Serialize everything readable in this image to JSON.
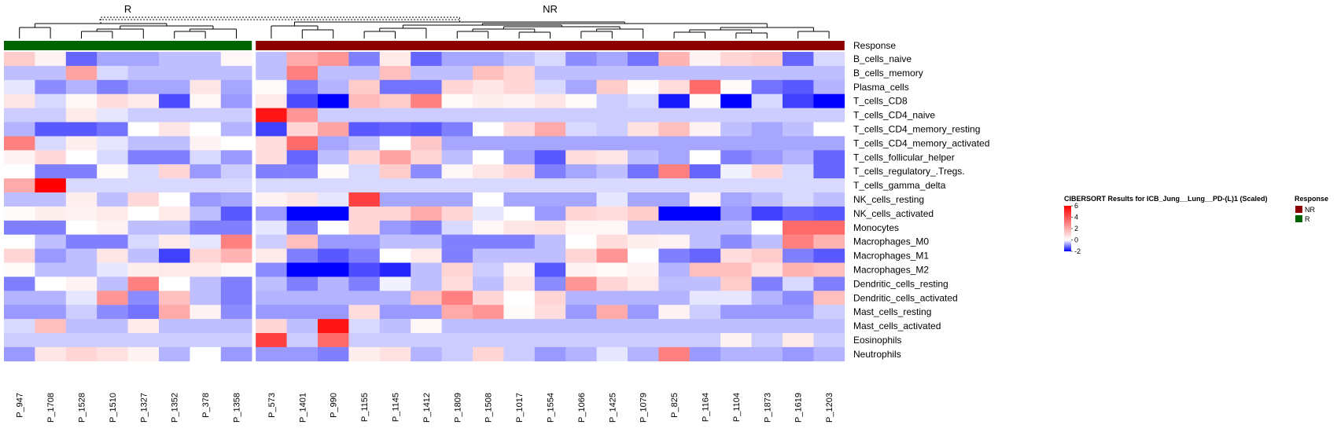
{
  "chart_data": {
    "type": "heatmap",
    "title": "",
    "annotation_row_label": "Response",
    "groups": [
      {
        "label": "R",
        "color": "#006400",
        "columns": [
          "P_947",
          "P_1708",
          "P_1528",
          "P_1510",
          "P_1327",
          "P_1352",
          "P_378",
          "P_1358"
        ]
      },
      {
        "label": "NR",
        "color": "#8B0000",
        "columns": [
          "P_573",
          "P_1401",
          "P_990",
          "P_1155",
          "P_1145",
          "P_1412",
          "P_1809",
          "P_1508",
          "P_1017",
          "P_1554",
          "P_1066",
          "P_1425",
          "P_1079",
          "P_825",
          "P_1164",
          "P_1104",
          "P_1873",
          "P_1619",
          "P_1203"
        ]
      }
    ],
    "rows": [
      "B_cells_naive",
      "B_cells_memory",
      "Plasma_cells",
      "T_cells_CD8",
      "T_cells_CD4_naive",
      "T_cells_CD4_memory_resting",
      "T_cells_CD4_memory_activated",
      "T_cells_follicular_helper",
      "T_cells_regulatory_.Tregs.",
      "T_cells_gamma_delta",
      "NK_cells_resting",
      "NK_cells_activated",
      "Monocytes",
      "Macrophages_M0",
      "Macrophages_M1",
      "Macrophages_M2",
      "Dendritic_cells_resting",
      "Dendritic_cells_activated",
      "Mast_cells_resting",
      "Mast_cells_activated",
      "Eosinophils",
      "Neutrophils"
    ],
    "values": [
      [
        1.2,
        0.3,
        -1.2,
        -0.7,
        -0.7,
        -0.5,
        -0.5,
        0.2,
        -0.5,
        2.0,
        2.5,
        -1.0,
        0.5,
        -1.2,
        -0.7,
        -0.7,
        -0.5,
        -0.3,
        -0.9,
        -0.7,
        -1.1,
        1.8,
        0.3,
        1.0,
        1.2,
        -1.2,
        -0.3
      ],
      [
        -0.5,
        -0.5,
        2.2,
        -0.3,
        -0.5,
        -0.5,
        -0.5,
        -0.5,
        -0.5,
        3.0,
        -0.5,
        -0.5,
        1.5,
        -0.5,
        -0.5,
        1.5,
        1.0,
        -0.5,
        -0.5,
        -0.5,
        -0.5,
        -0.5,
        -0.5,
        -0.5,
        -0.5,
        -0.5,
        -0.5
      ],
      [
        -0.2,
        -0.9,
        -0.6,
        -1.0,
        -0.7,
        -0.7,
        0.6,
        -0.7,
        0.1,
        -1.0,
        -0.6,
        1.2,
        -1.1,
        -1.1,
        1.0,
        0.6,
        1.0,
        -0.3,
        -0.7,
        1.2,
        0.1,
        0.8,
        3.5,
        0.1,
        -1.1,
        -1.3,
        -0.6
      ],
      [
        0.6,
        -0.3,
        0.2,
        0.8,
        0.5,
        -1.4,
        0.2,
        -0.8,
        0.5,
        -1.4,
        -2.0,
        1.6,
        1.2,
        3.0,
        0.1,
        0.4,
        0.3,
        0.6,
        0.1,
        -0.4,
        -0.3,
        -1.8,
        0.1,
        -2.0,
        -0.3,
        -1.5,
        -2.0
      ],
      [
        -0.4,
        -0.4,
        0.5,
        -0.2,
        -0.4,
        -0.4,
        -0.4,
        -0.4,
        5.5,
        2.5,
        -0.4,
        -0.4,
        -0.4,
        -0.4,
        -0.4,
        -0.4,
        -0.4,
        -0.4,
        -0.4,
        -0.4,
        -0.4,
        -0.4,
        -0.4,
        -0.4,
        -0.4,
        -0.4,
        -0.4
      ],
      [
        -0.6,
        -1.3,
        -1.3,
        -1.1,
        0.0,
        0.6,
        0.0,
        -0.6,
        -1.5,
        1.0,
        2.2,
        -1.3,
        -1.2,
        -1.3,
        -1.0,
        0.0,
        0.9,
        2.0,
        -0.3,
        -0.4,
        0.7,
        1.5,
        0.3,
        -0.5,
        -0.7,
        -0.5,
        0.0
      ],
      [
        3.0,
        -0.3,
        0.4,
        -0.2,
        -0.5,
        -0.5,
        0.3,
        0.0,
        0.8,
        3.5,
        -0.7,
        -0.5,
        0.0,
        1.3,
        -0.7,
        -0.7,
        -0.7,
        -0.7,
        -0.7,
        -0.7,
        -0.7,
        -0.7,
        -0.7,
        -0.7,
        -0.7,
        -0.7,
        -0.7
      ],
      [
        0.3,
        0.9,
        0.0,
        -0.3,
        -1.0,
        -1.0,
        -0.3,
        -0.8,
        0.8,
        -1.2,
        -0.5,
        1.0,
        2.2,
        1.0,
        -0.5,
        0.0,
        -0.8,
        -1.3,
        0.8,
        0.6,
        -0.5,
        -0.7,
        0.0,
        -1.0,
        -0.8,
        -0.6,
        -1.2
      ],
      [
        0.0,
        -1.0,
        -1.0,
        0.1,
        -0.3,
        1.0,
        -0.8,
        -0.4,
        -1.0,
        -1.0,
        0.1,
        -0.3,
        1.2,
        -0.9,
        0.2,
        0.6,
        1.0,
        -1.0,
        -0.7,
        -0.5,
        -1.1,
        3.0,
        -1.2,
        -0.1,
        1.0,
        -0.3,
        -1.2
      ],
      [
        2.0,
        6.0,
        -0.3,
        -0.3,
        -0.3,
        -0.3,
        -0.3,
        -0.3,
        -0.3,
        -0.3,
        -0.3,
        -0.3,
        -0.3,
        -0.3,
        -0.3,
        -0.3,
        -0.3,
        -0.3,
        -0.3,
        -0.3,
        -0.3,
        -0.3,
        -0.3,
        -0.3,
        -0.3,
        -0.3,
        -0.3
      ],
      [
        -0.5,
        -0.5,
        0.4,
        -0.5,
        0.9,
        0.0,
        -0.8,
        -0.7,
        0.3,
        0.6,
        -0.2,
        4.5,
        -0.7,
        -0.7,
        -0.7,
        0.0,
        -0.7,
        -0.7,
        -0.7,
        -0.2,
        -0.7,
        -0.7,
        0.3,
        -0.7,
        -0.5,
        -0.3,
        -0.5
      ],
      [
        0.1,
        0.4,
        0.3,
        0.5,
        0.0,
        0.5,
        -0.5,
        -1.3,
        -0.8,
        -2.0,
        -2.0,
        1.0,
        1.0,
        2.0,
        1.0,
        -0.2,
        0.0,
        -0.8,
        1.0,
        0.8,
        1.2,
        -2.0,
        -2.0,
        -0.8,
        -1.5,
        -1.2,
        -1.3
      ],
      [
        -1.0,
        -1.0,
        0.0,
        0.3,
        -0.5,
        -0.5,
        -1.0,
        -1.0,
        -0.2,
        -1.0,
        0.0,
        1.0,
        -0.8,
        -1.0,
        -0.3,
        0.2,
        0.6,
        0.7,
        0.2,
        0.2,
        -0.5,
        -0.5,
        -0.5,
        -0.5,
        0.0,
        3.5,
        3.5
      ],
      [
        0.0,
        -0.5,
        -1.0,
        -1.0,
        -0.3,
        0.5,
        -0.2,
        3.0,
        -0.4,
        1.5,
        -0.8,
        -0.8,
        -0.5,
        -0.5,
        -1.0,
        -1.0,
        -1.0,
        -0.5,
        0.0,
        0.8,
        0.4,
        0.3,
        -0.5,
        -0.9,
        -0.5,
        3.0,
        1.8
      ],
      [
        1.0,
        -0.8,
        -0.5,
        0.6,
        -0.5,
        -1.5,
        1.0,
        1.8,
        0.5,
        -1.0,
        -1.3,
        -1.0,
        0.0,
        0.5,
        -1.0,
        -0.5,
        -0.5,
        -0.5,
        1.0,
        2.5,
        0.0,
        -1.0,
        -1.2,
        0.8,
        1.2,
        -1.0,
        -1.3
      ],
      [
        0.1,
        -0.5,
        -0.5,
        -0.2,
        0.4,
        0.5,
        0.5,
        0.2,
        -0.9,
        -3.0,
        -4.5,
        -1.4,
        -1.7,
        -0.5,
        1.0,
        -0.4,
        0.3,
        -1.3,
        0.3,
        0.1,
        0.3,
        -0.6,
        1.5,
        1.5,
        0.7,
        1.8,
        1.5
      ],
      [
        -1.0,
        0.0,
        0.3,
        -0.5,
        3.0,
        0.0,
        -0.5,
        -1.0,
        -0.5,
        -1.0,
        -0.6,
        -1.0,
        -0.1,
        -0.5,
        0.8,
        -0.5,
        0.6,
        -0.9,
        2.5,
        1.0,
        0.5,
        -0.5,
        -0.5,
        1.2,
        -1.0,
        -0.3,
        -1.0
      ],
      [
        -0.6,
        -0.6,
        -0.2,
        2.5,
        -0.9,
        1.5,
        -0.5,
        -1.0,
        -0.6,
        -0.6,
        -0.6,
        -0.6,
        -0.6,
        1.5,
        3.0,
        1.0,
        0.0,
        1.0,
        -0.6,
        -0.6,
        -0.6,
        -0.6,
        -0.2,
        -0.2,
        -0.6,
        -0.9,
        1.5
      ],
      [
        -0.8,
        -0.8,
        -0.4,
        -0.9,
        -1.1,
        2.0,
        0.3,
        -0.9,
        -0.8,
        -0.8,
        -0.8,
        0.8,
        -0.8,
        -0.8,
        2.0,
        2.5,
        0.1,
        0.8,
        -0.8,
        2.0,
        -0.8,
        0.3,
        -0.4,
        -0.8,
        -0.8,
        -0.8,
        -0.4
      ],
      [
        -0.3,
        1.5,
        -0.5,
        -0.5,
        0.5,
        -0.5,
        -0.5,
        -0.5,
        1.0,
        -0.5,
        5.5,
        -0.3,
        -0.5,
        0.2,
        -0.5,
        -0.5,
        -0.5,
        -0.5,
        -0.5,
        -0.5,
        -0.5,
        -0.5,
        -0.5,
        -0.5,
        -0.5,
        -0.5,
        -0.5
      ],
      [
        -0.4,
        -0.4,
        -0.4,
        -0.4,
        -0.4,
        -0.4,
        -0.4,
        -0.4,
        4.5,
        -0.4,
        3.5,
        -0.4,
        -0.4,
        -0.4,
        -0.4,
        -0.4,
        -0.4,
        -0.4,
        -0.4,
        -0.4,
        -0.4,
        -0.4,
        -0.4,
        0.3,
        -0.4,
        0.5,
        -0.4
      ],
      [
        -0.8,
        0.6,
        1.0,
        0.7,
        0.3,
        -0.6,
        0.0,
        -0.8,
        -0.8,
        -0.8,
        -1.0,
        0.4,
        0.7,
        -0.6,
        -0.4,
        1.0,
        -0.4,
        -0.8,
        -0.6,
        -0.2,
        -0.6,
        3.0,
        -0.8,
        -0.6,
        -0.6,
        -0.8,
        -0.6
      ]
    ],
    "color_scale": {
      "min": -2,
      "max": 6,
      "low_color": "#0000FF",
      "mid_color": "#FFFFFF",
      "high_color": "#FF0000",
      "mid_value": 0
    },
    "legend": {
      "title": "CIBERSORT Results for ICB_Jung__Lung__PD-(L)1 (Scaled)",
      "ticks": [
        6,
        4,
        2,
        0,
        -2
      ],
      "annotation_title": "Response",
      "annotation_items": [
        {
          "label": "NR",
          "color": "#8B0000"
        },
        {
          "label": "R",
          "color": "#006400"
        }
      ]
    }
  }
}
